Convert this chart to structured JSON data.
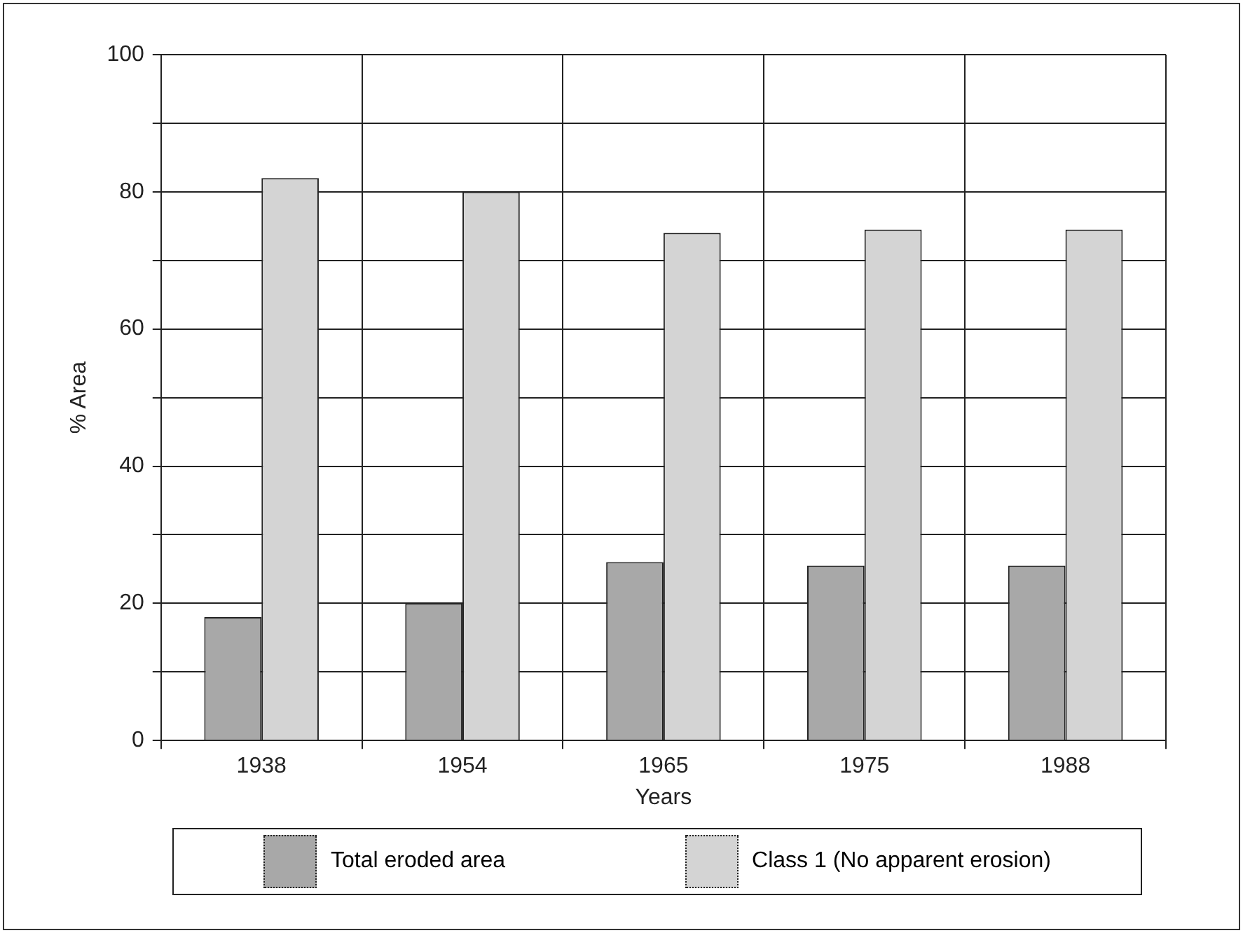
{
  "chart_data": {
    "type": "bar",
    "xlabel": "Years",
    "ylabel": "% Area",
    "categories": [
      "1938",
      "1954",
      "1965",
      "1975",
      "1988"
    ],
    "series": [
      {
        "name": "Total eroded area",
        "color": "#a8a8a8",
        "values": [
          18,
          20,
          26,
          25.5,
          25.5
        ]
      },
      {
        "name": "Class 1 (No apparent erosion)",
        "color": "#d4d4d4",
        "values": [
          82,
          80,
          74,
          74.5,
          74.5
        ]
      }
    ],
    "ylim": [
      0,
      100
    ],
    "yticks": [
      0,
      {
        "value": 10,
        "label": null
      },
      20,
      {
        "value": 30,
        "label": null
      },
      40,
      {
        "value": 50,
        "label": null
      },
      60,
      {
        "value": 70,
        "label": null
      },
      80,
      {
        "value": 90,
        "label": null
      },
      100
    ],
    "grid": true,
    "legend": "bottom"
  }
}
